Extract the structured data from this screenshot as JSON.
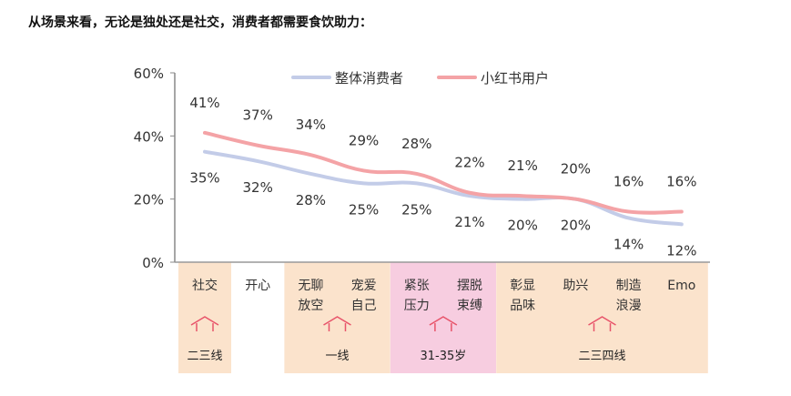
{
  "title": "从场景来看，无论是独处还是社交，消费者都需要食饮助力：",
  "chart_data": {
    "type": "line",
    "categories": [
      "社交",
      "开心",
      "无聊放空",
      "宠爱自己",
      "紧张压力",
      "摆脱束缚",
      "彰显品味",
      "助兴",
      "制造浪漫",
      "Emo"
    ],
    "category_lines": [
      [
        "社交"
      ],
      [
        "开心"
      ],
      [
        "无聊",
        "放空"
      ],
      [
        "宠爱",
        "自己"
      ],
      [
        "紧张",
        "压力"
      ],
      [
        "摆脱",
        "束缚"
      ],
      [
        "彰显",
        "品味"
      ],
      [
        "助兴"
      ],
      [
        "制造",
        "浪漫"
      ],
      [
        "Emo"
      ]
    ],
    "series": [
      {
        "name": "整体消费者",
        "color": "#c3cce8",
        "values": [
          35,
          32,
          28,
          25,
          25,
          21,
          20,
          20,
          14,
          12
        ],
        "label_suffix": "%"
      },
      {
        "name": "小红书用户",
        "color": "#f4a3a6",
        "values": [
          41,
          37,
          34,
          29,
          28,
          22,
          21,
          20,
          16,
          16
        ],
        "label_suffix": "%"
      }
    ],
    "y_ticks": [
      "0%",
      "20%",
      "40%",
      "60%"
    ],
    "ylim": [
      0,
      60
    ],
    "legend_position": "top",
    "groups": [
      {
        "label": "二三线",
        "from": 0,
        "to": 0,
        "color": "#fbe3cc"
      },
      {
        "label": "一线",
        "from": 2,
        "to": 3,
        "color": "#fbe3cc"
      },
      {
        "label": "31-35岁",
        "from": 4,
        "to": 5,
        "color": "#f7cde0"
      },
      {
        "label": "二三四线",
        "from": 6,
        "to": 9,
        "color": "#fbe3cc"
      }
    ],
    "arrow_color": "#e8546a"
  }
}
